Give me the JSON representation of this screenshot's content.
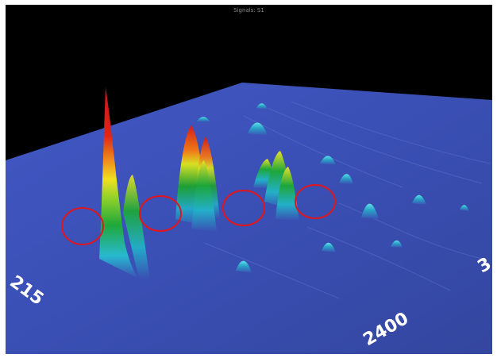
{
  "window": {
    "title": "Signals: S1"
  },
  "axes": {
    "left_tick": "215",
    "bottom_tick": "2400",
    "right_tick": "3"
  },
  "colors": {
    "background": "#000000",
    "surface": "#3a4fb4",
    "marker_circle": "#e0161c"
  },
  "markers": {
    "count": 4,
    "shape": "circle"
  }
}
